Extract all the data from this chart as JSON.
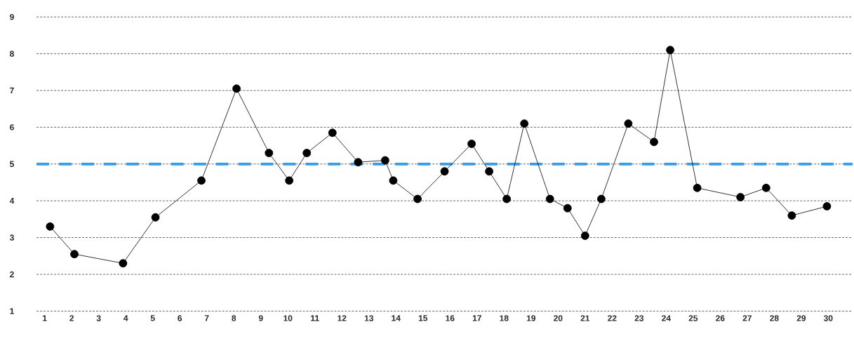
{
  "chart_data": {
    "type": "line",
    "x": [
      1.2,
      2.1,
      3.9,
      5.1,
      6.8,
      8.1,
      9.3,
      10.05,
      10.7,
      11.65,
      12.6,
      13.6,
      13.9,
      14.8,
      15.8,
      16.8,
      17.45,
      18.1,
      18.75,
      19.7,
      20.35,
      21.0,
      21.6,
      22.6,
      23.55,
      24.15,
      25.15,
      26.75,
      27.7,
      28.65,
      29.95
    ],
    "series": [
      {
        "color": "#000000",
        "values": [
          3.3,
          2.55,
          2.3,
          3.55,
          4.55,
          7.05,
          5.3,
          4.55,
          5.3,
          5.85,
          5.05,
          5.1,
          4.55,
          4.05,
          4.8,
          5.55,
          4.8,
          4.05,
          6.1,
          4.05,
          3.8,
          3.05,
          4.05,
          6.1,
          5.6,
          8.1,
          4.35,
          4.1,
          4.35,
          3.6,
          3.85
        ]
      }
    ],
    "xlim": [
      0.7,
      30.9
    ],
    "xticks": [
      1,
      2,
      3,
      4,
      5,
      6,
      7,
      8,
      9,
      10,
      11,
      12,
      13,
      14,
      15,
      16,
      17,
      18,
      19,
      20,
      21,
      22,
      23,
      24,
      25,
      26,
      27,
      28,
      29,
      30
    ],
    "ylim": [
      1,
      9
    ],
    "yticks": [
      1,
      2,
      3,
      4,
      5,
      6,
      7,
      8,
      9
    ],
    "ref_lines": [
      {
        "axis": "y",
        "value": 5,
        "color": "#3a9be8",
        "line_style": "dashed"
      }
    ],
    "grid": "y",
    "marker": "circle",
    "line_style": "solid"
  }
}
